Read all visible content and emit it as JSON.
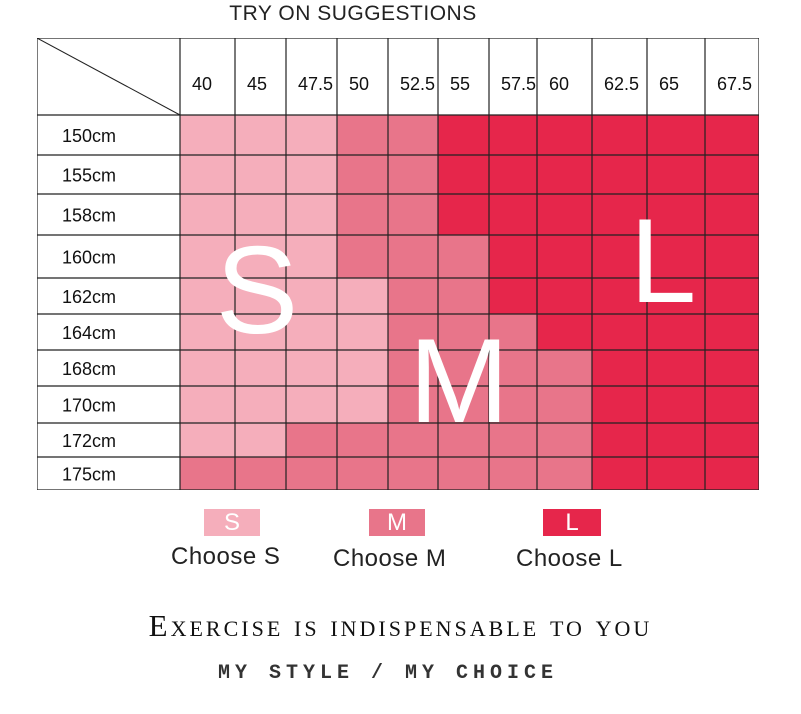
{
  "title": "TRY ON SUGGESTIONS",
  "chart_data": {
    "type": "table",
    "columns": [
      "40",
      "45",
      "47.5",
      "50",
      "52.5",
      "55",
      "57.5",
      "60",
      "62.5",
      "65",
      "67.5"
    ],
    "rows": [
      "150cm",
      "155cm",
      "158cm",
      "160cm",
      "162cm",
      "164cm",
      "168cm",
      "170cm",
      "172cm",
      "175cm"
    ],
    "sizes": [
      [
        "S",
        "S",
        "S",
        "M",
        "M",
        "L",
        "L",
        "L",
        "L",
        "L",
        "L"
      ],
      [
        "S",
        "S",
        "S",
        "M",
        "M",
        "L",
        "L",
        "L",
        "L",
        "L",
        "L"
      ],
      [
        "S",
        "S",
        "S",
        "M",
        "M",
        "L",
        "L",
        "L",
        "L",
        "L",
        "L"
      ],
      [
        "S",
        "S",
        "S",
        "M",
        "M",
        "M",
        "L",
        "L",
        "L",
        "L",
        "L"
      ],
      [
        "S",
        "S",
        "S",
        "S",
        "M",
        "M",
        "L",
        "L",
        "L",
        "L",
        "L"
      ],
      [
        "S",
        "S",
        "S",
        "S",
        "M",
        "M",
        "M",
        "L",
        "L",
        "L",
        "L"
      ],
      [
        "S",
        "S",
        "S",
        "S",
        "M",
        "M",
        "M",
        "M",
        "L",
        "L",
        "L"
      ],
      [
        "S",
        "S",
        "S",
        "S",
        "M",
        "M",
        "M",
        "M",
        "L",
        "L",
        "L"
      ],
      [
        "S",
        "S",
        "M",
        "M",
        "M",
        "M",
        "M",
        "M",
        "L",
        "L",
        "L"
      ],
      [
        "M",
        "M",
        "M",
        "M",
        "M",
        "M",
        "M",
        "M",
        "L",
        "L",
        "L"
      ]
    ],
    "size_letters": [
      "S",
      "M",
      "L"
    ]
  },
  "colors": {
    "S": "#f5aebb",
    "M": "#e8758a",
    "L": "#e6264b",
    "border": "#222222"
  },
  "legend": [
    {
      "key": "S",
      "letter": "S",
      "label": "Choose S"
    },
    {
      "key": "M",
      "letter": "M",
      "label": "Choose M"
    },
    {
      "key": "L",
      "letter": "L",
      "label": "Choose L"
    }
  ],
  "slogan": "Exercise is indispensable to you",
  "tagline": "MY STYLE  / MY CHOICE"
}
